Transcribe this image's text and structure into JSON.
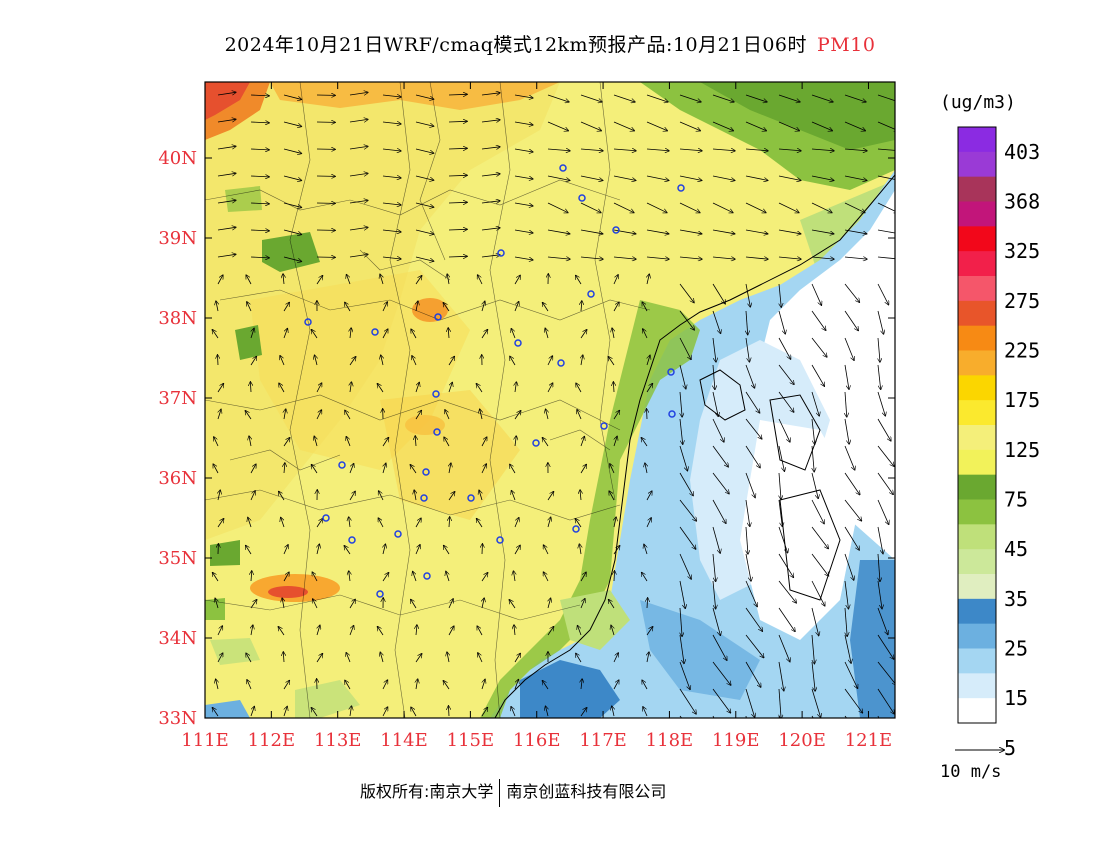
{
  "title": {
    "main": "2024年10月21日WRF/cmaq模式12km预报产品:10月21日06时",
    "species": "PM10"
  },
  "map": {
    "lon_ticks": [
      "111E",
      "112E",
      "113E",
      "114E",
      "115E",
      "116E",
      "117E",
      "118E",
      "119E",
      "120E",
      "121E"
    ],
    "lat_ticks": [
      "33N",
      "34N",
      "35N",
      "36N",
      "37N",
      "38N",
      "39N",
      "40N"
    ],
    "tick_color": "#e8313a"
  },
  "legend": {
    "unit": "(ug/m3)",
    "labels": [
      "403",
      "368",
      "325",
      "275",
      "225",
      "175",
      "125",
      "75",
      "45",
      "35",
      "25",
      "15",
      "5"
    ],
    "colors": [
      "#8b2be2",
      "#9a3ad6",
      "#a8345a",
      "#c2157a",
      "#f2071a",
      "#f2204a",
      "#f5566a",
      "#e8552a",
      "#f78a14",
      "#f8ad2c",
      "#fbd600",
      "#fbe92e",
      "#f4ef7a",
      "#f2f25a",
      "#6aa830",
      "#8cc240",
      "#bfe07a",
      "#cce89a",
      "#e0eec0",
      "#3d88c8",
      "#6cb0e0",
      "#a4d6f2",
      "#d6ecfa",
      "#ffffff"
    ]
  },
  "wind": {
    "ref_label": "10 m/s"
  },
  "footer": {
    "left": "版权所有:南京大学",
    "right": "南京创蓝科技有限公司"
  }
}
